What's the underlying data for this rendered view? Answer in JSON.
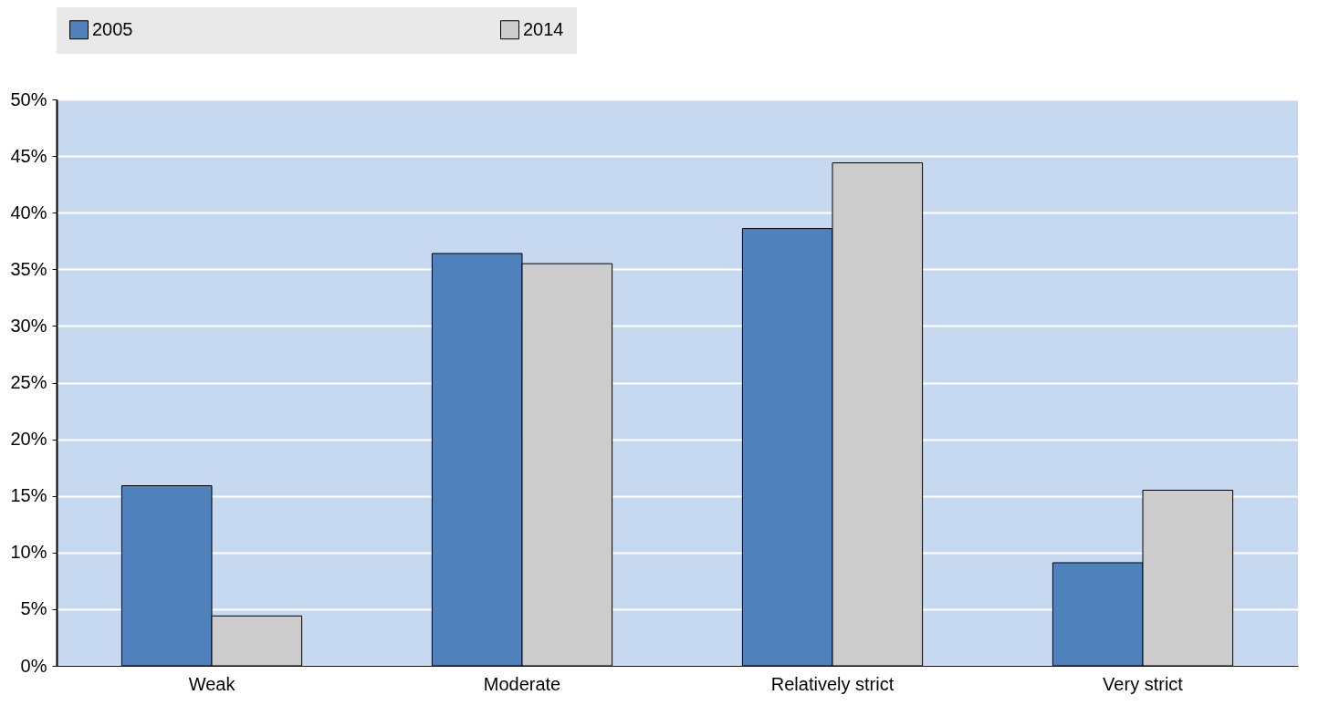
{
  "chart_data": {
    "type": "bar",
    "categories": [
      "Weak",
      "Moderate",
      "Relatively strict",
      "Very strict"
    ],
    "series": [
      {
        "name": "2005",
        "color": "#4f81bd",
        "values": [
          15.9,
          36.4,
          38.6,
          9.1
        ]
      },
      {
        "name": "2014",
        "color": "#cccccc",
        "values": [
          4.4,
          35.5,
          44.4,
          15.5
        ]
      }
    ],
    "ylim": [
      0,
      50
    ],
    "yticks": [
      {
        "value": 0,
        "label": "0%"
      },
      {
        "value": 5,
        "label": "5%"
      },
      {
        "value": 10,
        "label": "10%"
      },
      {
        "value": 15,
        "label": "15%"
      },
      {
        "value": 20,
        "label": "20%"
      },
      {
        "value": 25,
        "label": "25%"
      },
      {
        "value": 30,
        "label": "30%"
      },
      {
        "value": 35,
        "label": "35%"
      },
      {
        "value": 40,
        "label": "40%"
      },
      {
        "value": 45,
        "label": "45%"
      },
      {
        "value": 50,
        "label": "50%"
      }
    ],
    "grid": "y",
    "legend": "top"
  }
}
